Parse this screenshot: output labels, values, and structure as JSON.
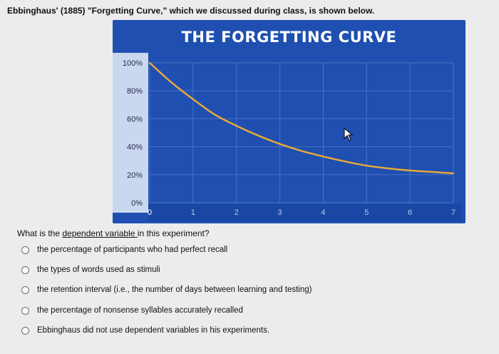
{
  "intro_text": "Ebbinghaus' (1885) \"Forgetting Curve,\" which we discussed during class, is shown below.",
  "chart_data": {
    "type": "line",
    "title": "THE FORGETTING CURVE",
    "xlabel": "",
    "ylabel": "",
    "x_ticks": [
      "0",
      "1",
      "2",
      "3",
      "4",
      "5",
      "6",
      "7"
    ],
    "y_ticks": [
      "0%",
      "20%",
      "40%",
      "60%",
      "80%",
      "100%"
    ],
    "xlim": [
      0,
      7
    ],
    "ylim": [
      0,
      100
    ],
    "grid": true,
    "series": [
      {
        "x": [
          0,
          0.5,
          1,
          1.5,
          2,
          2.5,
          3,
          3.5,
          4,
          4.5,
          5,
          5.5,
          6,
          6.5,
          7
        ],
        "values": [
          100,
          86,
          74,
          63,
          55,
          48,
          42,
          37,
          33,
          29.5,
          26.5,
          24.5,
          23,
          22,
          21
        ]
      }
    ],
    "colors": {
      "background": "#1f4fb0",
      "line": "#e8a83a",
      "grid": "#4a72c4",
      "label_box": "#c9d7ef"
    }
  },
  "question": {
    "before": "What is the ",
    "link": "dependent variable ",
    "after": "in this experiment?"
  },
  "options": [
    "the percentage of participants who had perfect recall",
    "the types of words used as stimuli",
    "the retention interval (i.e., the number of days between learning and testing)",
    "the percentage of nonsense syllables accurately recalled",
    "Ebbinghaus did not use dependent variables in his experiments."
  ]
}
